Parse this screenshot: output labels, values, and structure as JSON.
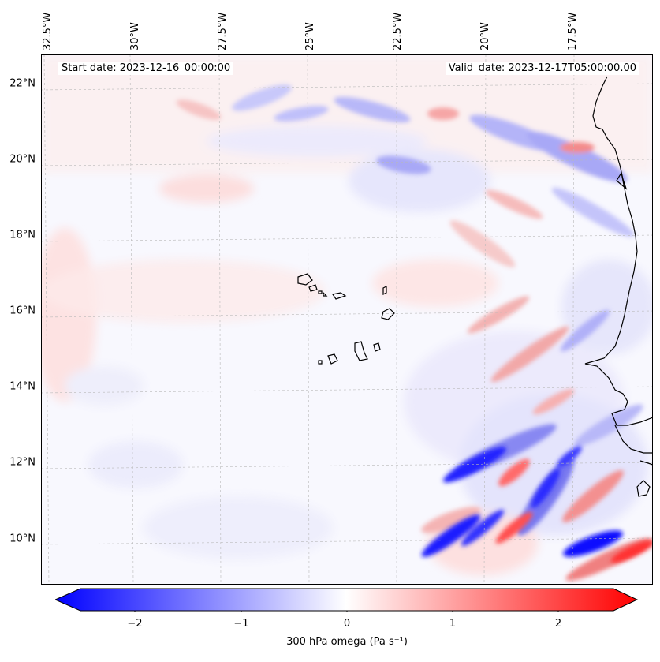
{
  "info": {
    "start_date": "Start date: 2023-12-16_00:00:00",
    "valid_date": "Valid_date: 2023-12-17T05:00:00.00"
  },
  "map": {
    "lat_labels": [
      "22°N",
      "20°N",
      "18°N",
      "16°N",
      "14°N",
      "12°N",
      "10°N"
    ],
    "lon_labels": [
      "32.5°W",
      "30°W",
      "27.5°W",
      "25°W",
      "22.5°W",
      "20°W",
      "17.5°W"
    ]
  },
  "colorbar": {
    "label": "300 hPa omega (Pa s⁻¹)",
    "ticks": [
      "−2",
      "−1",
      "0",
      "1",
      "2"
    ],
    "range": [
      -2.6,
      2.6
    ],
    "colors": {
      "min": "#0000ff",
      "mid": "#ffffff",
      "max": "#ff0000"
    }
  }
}
